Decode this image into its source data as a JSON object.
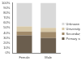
{
  "chart_data": {
    "type": "bar",
    "stacked": true,
    "categories": [
      "Female",
      "Male"
    ],
    "series": [
      {
        "name": "Primary school",
        "color": "#6b5e4e",
        "values": [
          35,
          30
        ]
      },
      {
        "name": "Secondary school",
        "color": "#a08a6a",
        "values": [
          8,
          12
        ]
      },
      {
        "name": "University",
        "color": "#d7c8a8",
        "values": [
          10,
          8
        ]
      },
      {
        "name": "Unknown",
        "color": "#d9d9d9",
        "values": [
          47,
          50
        ]
      }
    ],
    "ylim": [
      0,
      100
    ],
    "yticks": [
      {
        "value": 0,
        "label": "0%"
      },
      {
        "value": 10,
        "label": "10%"
      },
      {
        "value": 20,
        "label": "20%"
      },
      {
        "value": 30,
        "label": "30%"
      },
      {
        "value": 40,
        "label": "40%"
      },
      {
        "value": 50,
        "label": "50%"
      },
      {
        "value": 60,
        "label": "60%"
      },
      {
        "value": 70,
        "label": "70%"
      },
      {
        "value": 80,
        "label": "80%"
      },
      {
        "value": 90,
        "label": "90%"
      },
      {
        "value": 100,
        "label": "100%"
      }
    ],
    "grid": false,
    "legend": "right"
  }
}
